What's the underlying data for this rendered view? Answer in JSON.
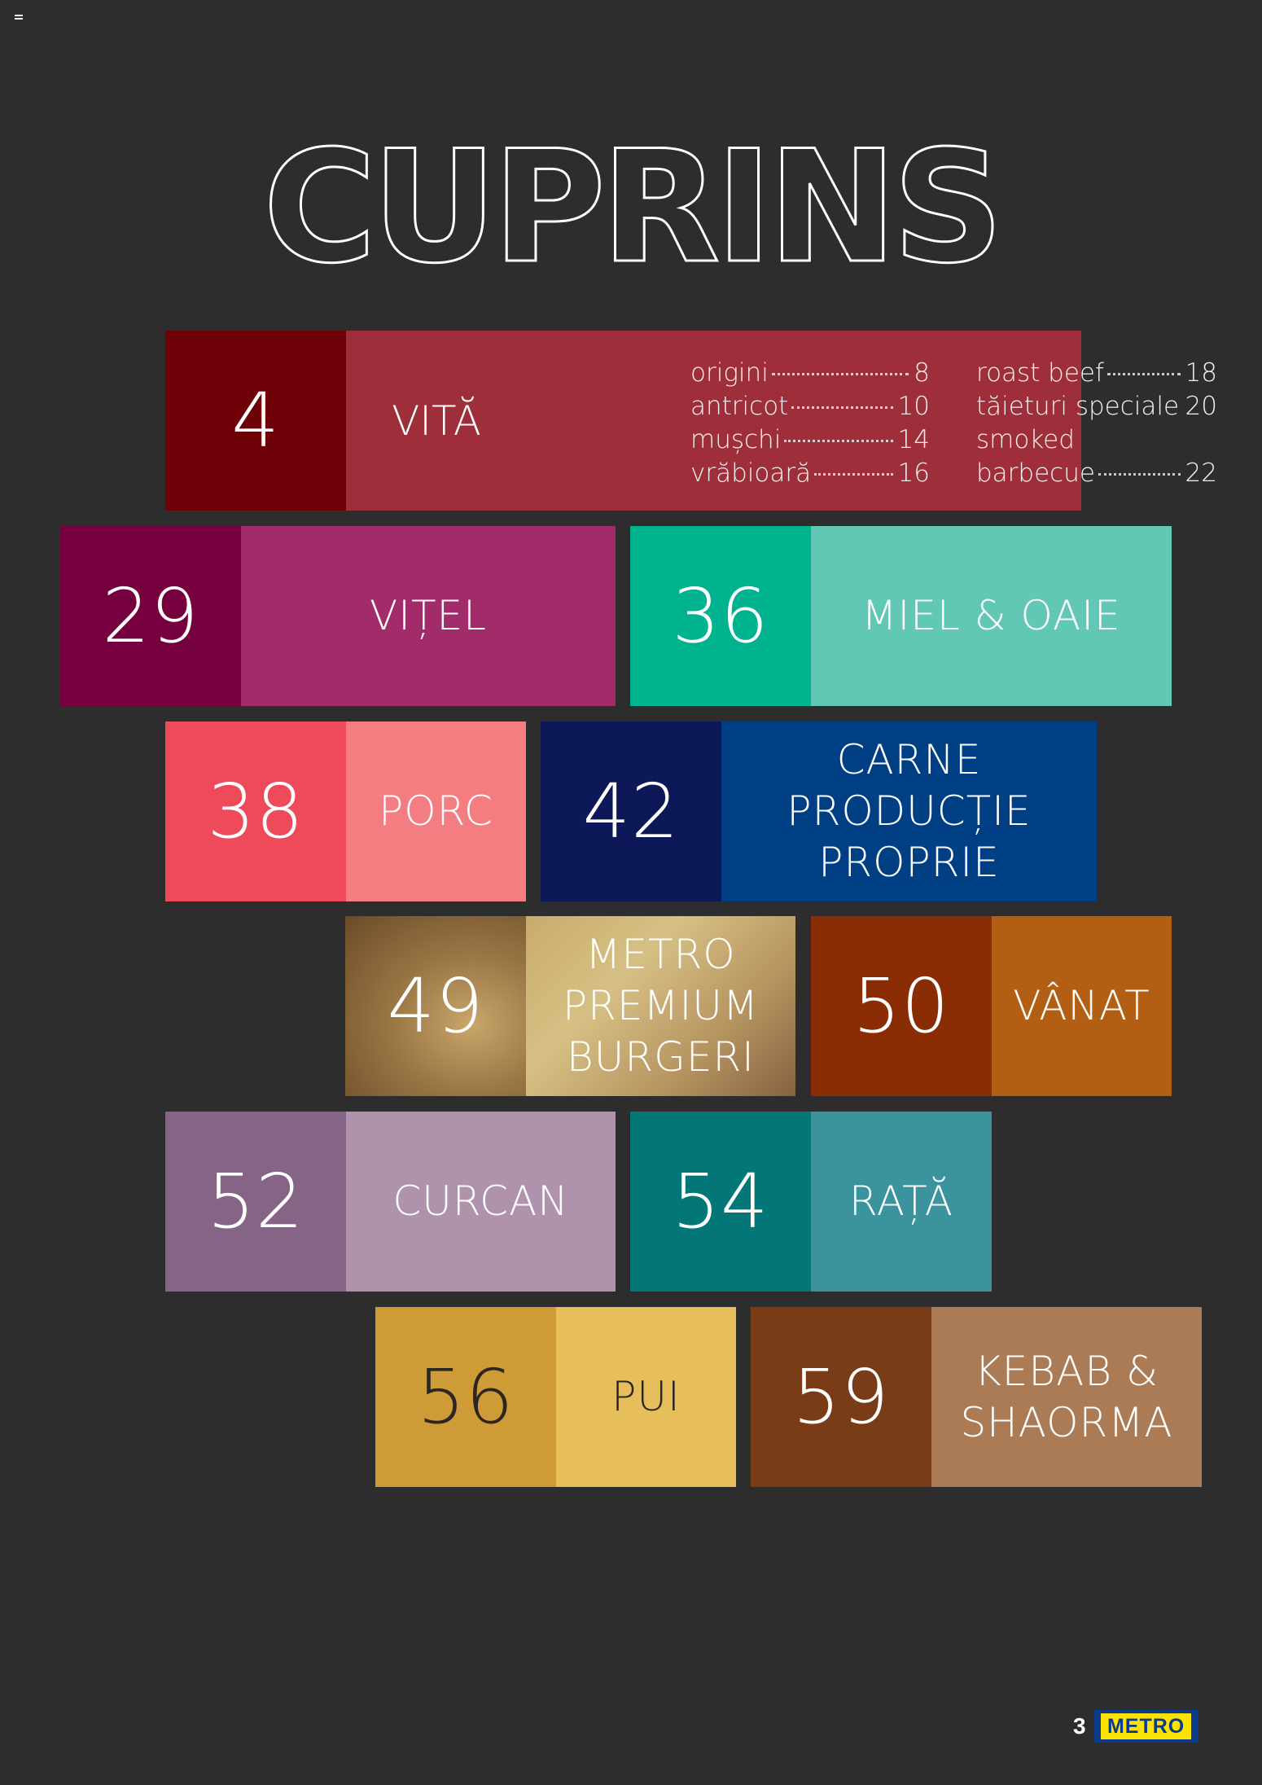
{
  "title": "CUPRINS",
  "vita": {
    "number": "4",
    "label": "VITĂ",
    "col1": [
      {
        "text": "origini",
        "page": "8"
      },
      {
        "text": "antricot",
        "page": "10"
      },
      {
        "text": "mușchi",
        "page": "14"
      },
      {
        "text": "vrăbioară",
        "page": "16"
      }
    ],
    "col2": [
      {
        "text": "roast beef",
        "page": "18"
      },
      {
        "text": "tăieturi speciale",
        "page": "20"
      },
      {
        "text": "smoked",
        "page": ""
      },
      {
        "text": "barbecue",
        "page": "22"
      }
    ]
  },
  "sections": [
    {
      "number": "29",
      "label": "VIȚEL"
    },
    {
      "number": "36",
      "label": "MIEL & OAIE"
    },
    {
      "number": "38",
      "label": "PORC"
    },
    {
      "number": "42",
      "label": "CARNE\nPRODUCȚIE\nPROPRIE"
    },
    {
      "number": "49",
      "label": "METRO\nPREMIUM\nBURGERI"
    },
    {
      "number": "50",
      "label": "VÂNAT"
    },
    {
      "number": "52",
      "label": "CURCAN"
    },
    {
      "number": "54",
      "label": "RAȚĂ"
    },
    {
      "number": "56",
      "label": "PUI"
    },
    {
      "number": "59",
      "label": "KEBAB &\nSHAORMA"
    }
  ],
  "colors": {
    "vita": [
      "#6e0008",
      "#9e2f3a"
    ],
    "vitel": [
      "#76003e",
      "#a12c69"
    ],
    "miel": [
      "#00b38f",
      "#62c8b6"
    ],
    "porc": [
      "#ee4a5a",
      "#f47d82"
    ],
    "carne": [
      "#0c1857",
      "#003f84"
    ],
    "vanat": [
      "#8a2d04",
      "#b35f13"
    ],
    "curcan": [
      "#866486",
      "#af92ac"
    ],
    "rata": [
      "#037777",
      "#3b939d"
    ],
    "pui": [
      "#ce9b37",
      "#e6bf5c"
    ],
    "kebab": [
      "#7a3b17",
      "#ab7b55"
    ]
  },
  "footer": {
    "page_number": "3",
    "logo_text": "METRO"
  }
}
